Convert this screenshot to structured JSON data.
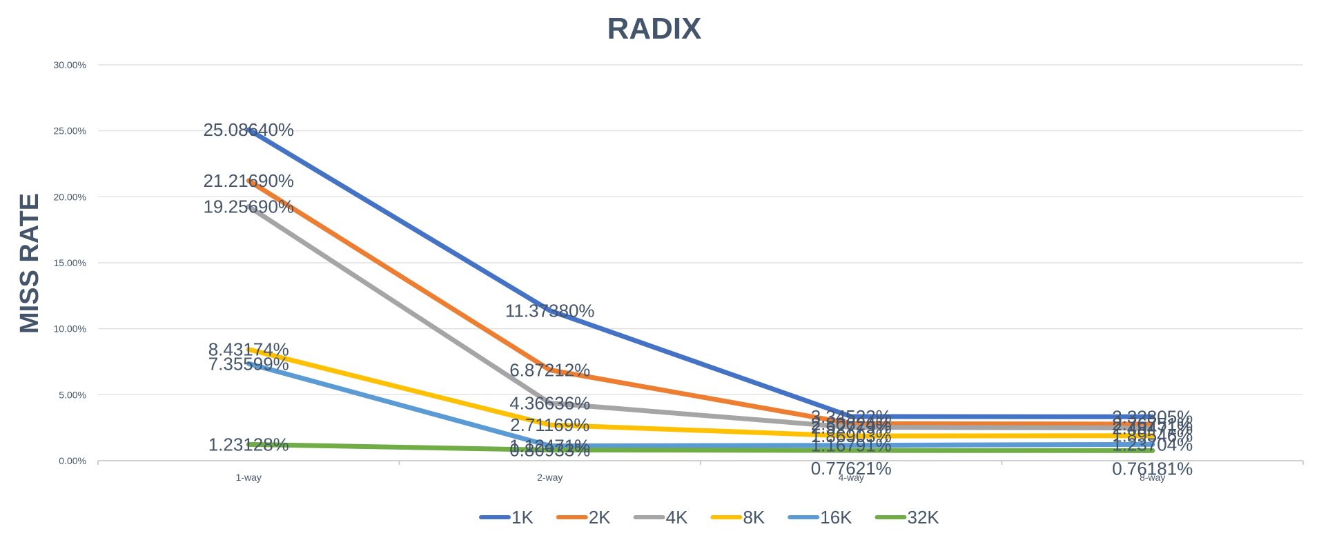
{
  "chart_data": {
    "type": "line",
    "title": "RADIX",
    "xlabel": "",
    "ylabel": "MISS RATE",
    "categories": [
      "1-way",
      "2-way",
      "4-way",
      "8-way"
    ],
    "y_ticks": [
      "0.00%",
      "5.00%",
      "10.00%",
      "15.00%",
      "20.00%",
      "25.00%",
      "30.00%"
    ],
    "ylim": [
      0,
      30
    ],
    "grid": true,
    "legend_position": "bottom",
    "series": [
      {
        "name": "1K",
        "color": "#4472c4",
        "values": [
          25.0864,
          11.3738,
          3.34522,
          3.32805
        ],
        "labels": [
          "25.08640%",
          "11.37380%",
          "3.34522%",
          "3.32805%"
        ]
      },
      {
        "name": "2K",
        "color": "#ed7d31",
        "values": [
          21.2169,
          6.87212,
          2.80624,
          2.76751
        ],
        "labels": [
          "21.21690%",
          "6.87212%",
          "2.80624%",
          "2.76751%"
        ]
      },
      {
        "name": "4K",
        "color": "#a5a5a5",
        "values": [
          19.2569,
          4.36636,
          2.52779,
          2.48471
        ],
        "labels": [
          "19.25690%",
          "4.36636%",
          "2.52779%",
          "2.48471%"
        ]
      },
      {
        "name": "8K",
        "color": "#ffc000",
        "values": [
          8.43174,
          2.71169,
          1.86903,
          1.89546
        ],
        "labels": [
          "8.43174%",
          "2.71169%",
          "1.86903%",
          "1.89546%"
        ]
      },
      {
        "name": "16K",
        "color": "#5b9bd5",
        "values": [
          7.35599,
          1.12471,
          1.16791,
          1.23704
        ],
        "labels": [
          "7.35599%",
          "1.12471%",
          "1.16791%",
          "1.23704%"
        ]
      },
      {
        "name": "32K",
        "color": "#70ad47",
        "values": [
          1.23128,
          0.80933,
          0.77621,
          0.76181
        ],
        "labels": [
          "1.23128%",
          "0.80933%",
          "0.77621%",
          "0.76181%"
        ]
      }
    ]
  }
}
